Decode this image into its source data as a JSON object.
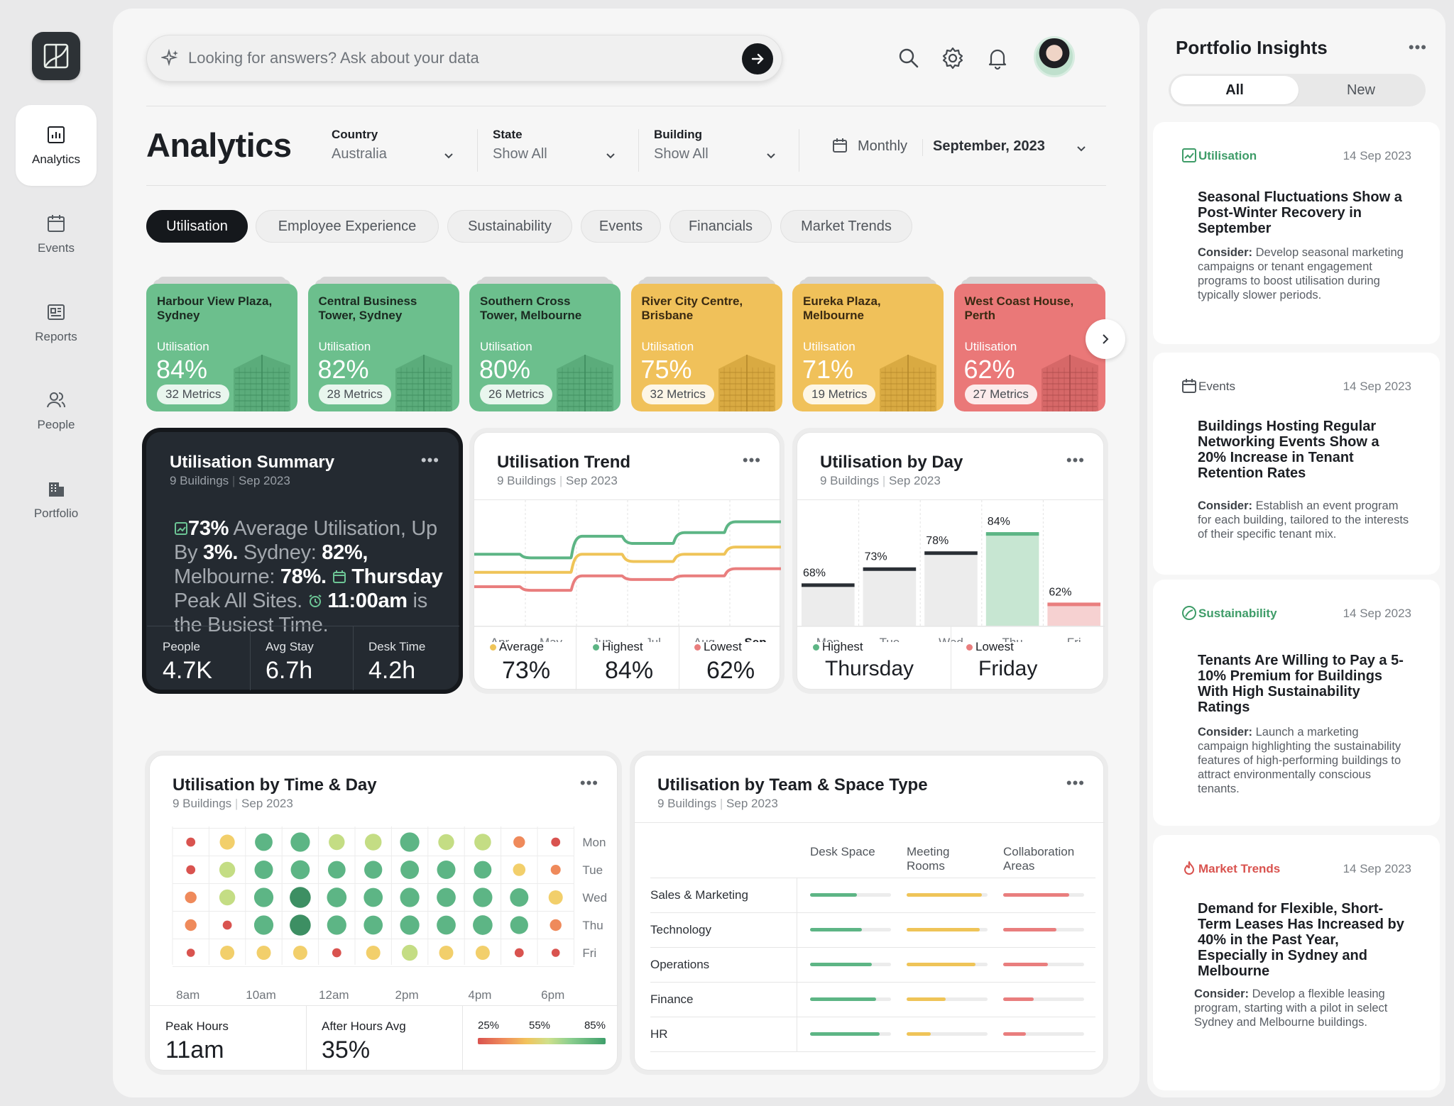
{
  "nav": {
    "items": [
      {
        "label": "Analytics",
        "icon": "bar-chart-icon",
        "active": true
      },
      {
        "label": "Events",
        "icon": "calendar-icon"
      },
      {
        "label": "Reports",
        "icon": "report-icon"
      },
      {
        "label": "People",
        "icon": "people-icon"
      },
      {
        "label": "Portfolio",
        "icon": "building-icon"
      }
    ]
  },
  "search": {
    "placeholder": "Looking for answers? Ask about your data"
  },
  "header": {
    "title": "Analytics",
    "filters": [
      {
        "label": "Country",
        "value": "Australia"
      },
      {
        "label": "State",
        "value": "Show All"
      },
      {
        "label": "Building",
        "value": "Show All"
      }
    ],
    "period": {
      "granularity": "Monthly",
      "value": "September, 2023"
    }
  },
  "tabs": [
    "Utilisation",
    "Employee Experience",
    "Sustainability",
    "Events",
    "Financials",
    "Market Trends"
  ],
  "buildings": [
    {
      "name": "Harbour View Plaza, Sydney",
      "label": "Utilisation",
      "pct": "84%",
      "metrics": "32 Metrics",
      "tone": "green"
    },
    {
      "name": "Central Business Tower, Sydney",
      "label": "Utilisation",
      "pct": "82%",
      "metrics": "28 Metrics",
      "tone": "green"
    },
    {
      "name": "Southern Cross Tower, Melbourne",
      "label": "Utilisation",
      "pct": "80%",
      "metrics": "26 Metrics",
      "tone": "green"
    },
    {
      "name": "River City Centre, Brisbane",
      "label": "Utilisation",
      "pct": "75%",
      "metrics": "32 Metrics",
      "tone": "yellow"
    },
    {
      "name": "Eureka Plaza, Melbourne",
      "label": "Utilisation",
      "pct": "71%",
      "metrics": "19 Metrics",
      "tone": "yellow"
    },
    {
      "name": "West Coast House, Perth",
      "label": "Utilisation",
      "pct": "62%",
      "metrics": "27 Metrics",
      "tone": "red"
    }
  ],
  "summary": {
    "title": "Utilisation Summary",
    "sub1": "9 Buildings",
    "sub2": "Sep 2023",
    "t1": "73%",
    "t2": " Average Utilisation, Up By ",
    "t3": "3%.",
    "t4": " Sydney: ",
    "t5": "82%,",
    "t6": " Melbourne: ",
    "t7": "78%.",
    "t8": " Thursday",
    "t9": " Peak All Sites.",
    "t10": " 11:00am",
    "t11": " is the Busiest Time.",
    "stats": [
      {
        "label": "People",
        "value": "4.7K"
      },
      {
        "label": "Avg Stay",
        "value": "6.7h"
      },
      {
        "label": "Desk Time",
        "value": "4.2h"
      }
    ]
  },
  "trend": {
    "title": "Utilisation Trend",
    "sub1": "9 Buildings",
    "sub2": "Sep 2023",
    "stats": [
      {
        "label": "Average",
        "value": "73%"
      },
      {
        "label": "Highest",
        "value": "84%"
      },
      {
        "label": "Lowest",
        "value": "62%"
      }
    ]
  },
  "byday": {
    "title": "Utilisation by Day",
    "sub1": "9 Buildings",
    "sub2": "Sep 2023",
    "stats": [
      {
        "label": "Highest",
        "value": "Thursday"
      },
      {
        "label": "Lowest",
        "value": "Friday"
      }
    ]
  },
  "timeday": {
    "title": "Utilisation by Time & Day",
    "sub1": "9 Buildings",
    "sub2": "Sep 2023",
    "stats": [
      {
        "label": "Peak Hours",
        "value": "11am"
      },
      {
        "label": "After Hours Avg",
        "value": "35%"
      }
    ],
    "legend": [
      "25%",
      "55%",
      "85%"
    ]
  },
  "team": {
    "title": "Utilisation by Team & Space Type",
    "sub1": "9 Buildings",
    "sub2": "Sep 2023",
    "columns": [
      "Desk Space",
      "Meeting Rooms",
      "Collaboration Areas"
    ],
    "rows": [
      {
        "team": "Sales & Marketing",
        "values": [
          0.58,
          0.93,
          0.82
        ]
      },
      {
        "team": "Technology",
        "values": [
          0.64,
          0.9,
          0.66
        ]
      },
      {
        "team": "Operations",
        "values": [
          0.76,
          0.85,
          0.55
        ]
      },
      {
        "team": "Finance",
        "values": [
          0.82,
          0.48,
          0.38
        ]
      },
      {
        "team": "HR",
        "values": [
          0.86,
          0.3,
          0.28
        ]
      }
    ]
  },
  "chart_data": [
    {
      "type": "line",
      "title": "Utilisation Trend",
      "x": [
        "Apr",
        "May",
        "Jun",
        "Jul",
        "Aug",
        "Sep"
      ],
      "ylim": [
        55,
        90
      ],
      "series": [
        {
          "color": "#5db585",
          "values": [
            75,
            74,
            80,
            78,
            81,
            84
          ]
        },
        {
          "color": "#efc458",
          "values": [
            70,
            70,
            75,
            73,
            75,
            77
          ]
        },
        {
          "color": "#e97e7e",
          "values": [
            66,
            65,
            69,
            68,
            69,
            71
          ]
        }
      ]
    },
    {
      "type": "bar",
      "title": "Utilisation by Day",
      "categories": [
        "Mon",
        "Tue",
        "Wed",
        "Thu",
        "Fri"
      ],
      "values": [
        68,
        73,
        78,
        84,
        62
      ],
      "labels": [
        "68%",
        "73%",
        "78%",
        "84%",
        "62%"
      ],
      "ylim": [
        55,
        90
      ]
    },
    {
      "type": "heatmap",
      "title": "Utilisation by Time & Day",
      "x_labels": [
        "8am",
        "10am",
        "12am",
        "2pm",
        "4pm",
        "6pm"
      ],
      "rows": [
        "Mon",
        "Tue",
        "Wed",
        "Thu",
        "Fri"
      ],
      "values": [
        [
          0.2,
          0.55,
          0.7,
          0.8,
          0.6,
          0.65,
          0.8,
          0.6,
          0.65,
          0.35,
          0.2
        ],
        [
          0.2,
          0.6,
          0.75,
          0.78,
          0.7,
          0.72,
          0.75,
          0.75,
          0.7,
          0.4,
          0.25
        ],
        [
          0.35,
          0.6,
          0.8,
          0.9,
          0.82,
          0.78,
          0.8,
          0.78,
          0.8,
          0.75,
          0.5
        ],
        [
          0.35,
          0.2,
          0.8,
          0.9,
          0.8,
          0.78,
          0.8,
          0.78,
          0.82,
          0.72,
          0.35
        ],
        [
          0.15,
          0.5,
          0.5,
          0.5,
          0.2,
          0.5,
          0.6,
          0.5,
          0.5,
          0.2,
          0.15
        ]
      ]
    }
  ],
  "insights": {
    "title": "Portfolio Insights",
    "segments": [
      "All",
      "New"
    ],
    "cards": [
      {
        "category": "Utilisation",
        "date": "14 Sep 2023",
        "color": "#3e9c68",
        "headline": "Seasonal Fluctuations Show a Post-Winter Recovery in September",
        "consider_label": "Consider:",
        "consider": " Develop seasonal marketing campaigns or tenant engagement programs to boost utilisation during typically slower periods."
      },
      {
        "category": "Events",
        "date": "14 Sep 2023",
        "color": "#4f545a",
        "headline": "Buildings Hosting Regular Networking Events Show a 20% Increase in Tenant Retention Rates",
        "consider_label": "Consider:",
        "consider": " Establish an event program for each building, tailored to the interests of their specific tenant mix."
      },
      {
        "category": "Sustainability",
        "date": "14 Sep 2023",
        "color": "#3e9c68",
        "headline": "Tenants Are Willing to Pay a 5-10% Premium for Buildings With High Sustainability Ratings",
        "consider_label": "Consider:",
        "consider": " Launch a marketing campaign highlighting the sustainability features of high-performing buildings to attract environmentally conscious tenants."
      },
      {
        "category": "Market Trends",
        "date": "14 Sep 2023",
        "color": "#d9534f",
        "headline": "Demand for Flexible, Short-Term Leases Has Increased by 40% in the Past Year, Especially in Sydney and Melbourne",
        "consider_label": "Consider:",
        "consider": " Develop a flexible leasing program, starting with a pilot in select Sydney and Melbourne buildings."
      }
    ]
  }
}
